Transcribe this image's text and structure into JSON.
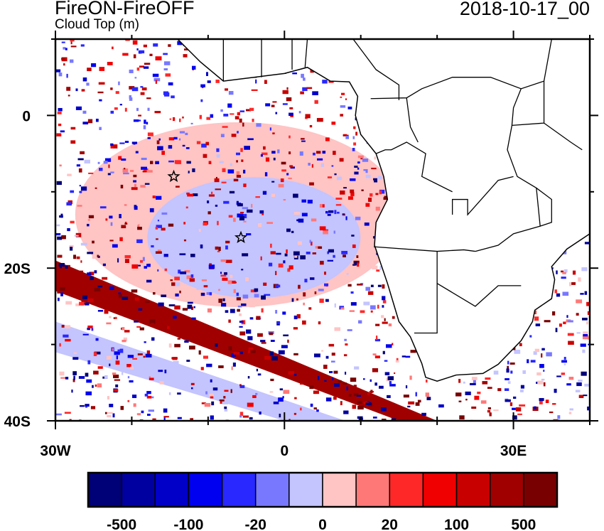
{
  "header": {
    "title": "FireON-FireOFF",
    "subtitle": "Cloud Top (m)",
    "date": "2018-10-17_00"
  },
  "map": {
    "lon_range": [
      -30,
      40
    ],
    "lat_range": [
      -40,
      10
    ],
    "x_ticks": [
      {
        "lon": -30,
        "label": "30W"
      },
      {
        "lon": 0,
        "label": "0"
      },
      {
        "lon": 30,
        "label": "30E"
      }
    ],
    "y_ticks": [
      {
        "lat": 0,
        "label": "0"
      },
      {
        "lat": -20,
        "label": "20S"
      },
      {
        "lat": -40,
        "label": "40S"
      }
    ],
    "markers": [
      {
        "type": "star",
        "lon": -14.5,
        "lat": -8
      },
      {
        "type": "star",
        "lon": -5.7,
        "lat": -16
      }
    ]
  },
  "colorbar": {
    "colors": [
      "#000077",
      "#0000a0",
      "#0000c8",
      "#0000f0",
      "#2828ff",
      "#7878ff",
      "#c4c4ff",
      "#ffc4c4",
      "#ff7878",
      "#ff2828",
      "#f00000",
      "#c80000",
      "#a00000",
      "#780000"
    ],
    "labels": [
      "-500",
      "-100",
      "-20",
      "0",
      "20",
      "100",
      "500"
    ]
  }
}
